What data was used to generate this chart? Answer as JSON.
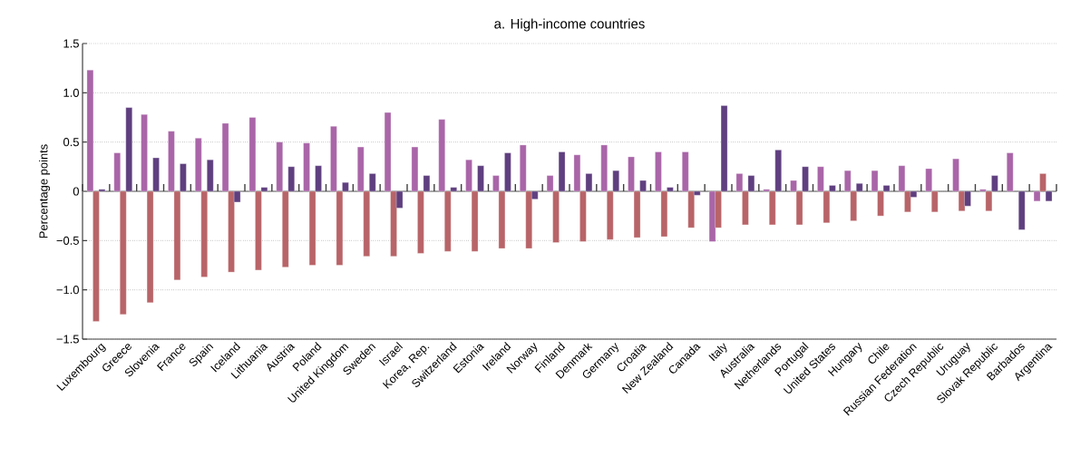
{
  "chart_data": {
    "type": "bar",
    "title": "a. High-income countries",
    "ylabel": "Percentage points",
    "categories": [
      "Luxembourg",
      "Greece",
      "Slovenia",
      "France",
      "Spain",
      "Iceland",
      "Lithuania",
      "Austria",
      "Poland",
      "United Kingdom",
      "Sweden",
      "Israel",
      "Korea, Rep.",
      "Switzerland",
      "Estonia",
      "Ireland",
      "Norway",
      "Finland",
      "Denmark",
      "Germany",
      "Croatia",
      "New Zealand",
      "Canada",
      "Italy",
      "Australia",
      "Netherlands",
      "Portugal",
      "United States",
      "Hungary",
      "Chile",
      "Russian Federation",
      "Czech Republic",
      "Uruguay",
      "Slovak Republic",
      "Barbados",
      "Argentina"
    ],
    "series": [
      {
        "color": "#a965a8",
        "values": [
          1.23,
          0.39,
          0.78,
          0.61,
          0.54,
          0.69,
          0.75,
          0.5,
          0.49,
          0.66,
          0.45,
          0.8,
          0.45,
          0.73,
          0.32,
          0.16,
          0.47,
          0.16,
          0.37,
          0.47,
          0.35,
          0.4,
          0.4,
          -0.51,
          0.18,
          0.02,
          0.11,
          0.25,
          0.21,
          0.21,
          0.26,
          0.23,
          0.33,
          0.02,
          0.39,
          -0.1
        ]
      },
      {
        "color": "#b86468",
        "values": [
          -1.32,
          -1.25,
          -1.13,
          -0.9,
          -0.87,
          -0.82,
          -0.8,
          -0.77,
          -0.75,
          -0.75,
          -0.66,
          -0.66,
          -0.63,
          -0.61,
          -0.61,
          -0.58,
          -0.58,
          -0.52,
          -0.51,
          -0.49,
          -0.47,
          -0.46,
          -0.37,
          -0.37,
          -0.34,
          -0.34,
          -0.34,
          -0.32,
          -0.3,
          -0.25,
          -0.21,
          -0.21,
          -0.2,
          -0.2,
          null,
          0.18
        ]
      },
      {
        "color": "#5f3f7f",
        "values": [
          0.02,
          0.85,
          0.34,
          0.28,
          0.32,
          -0.11,
          0.04,
          0.25,
          0.26,
          0.09,
          0.18,
          -0.17,
          0.16,
          0.04,
          0.26,
          0.39,
          -0.08,
          0.4,
          0.18,
          0.21,
          0.11,
          0.04,
          -0.04,
          0.87,
          0.16,
          0.42,
          0.25,
          0.06,
          0.08,
          0.06,
          -0.06,
          null,
          -0.15,
          0.16,
          -0.39,
          -0.1
        ]
      }
    ],
    "ylim": [
      -1.5,
      1.5
    ],
    "yticks": [
      {
        "value": -1.5,
        "label": "−1.5"
      },
      {
        "value": -1,
        "label": "−1.0"
      },
      {
        "value": -0.5,
        "label": "−0.5"
      },
      0,
      0.5,
      {
        "value": 1,
        "label": "1.0"
      },
      1.5
    ],
    "grid": "y"
  }
}
